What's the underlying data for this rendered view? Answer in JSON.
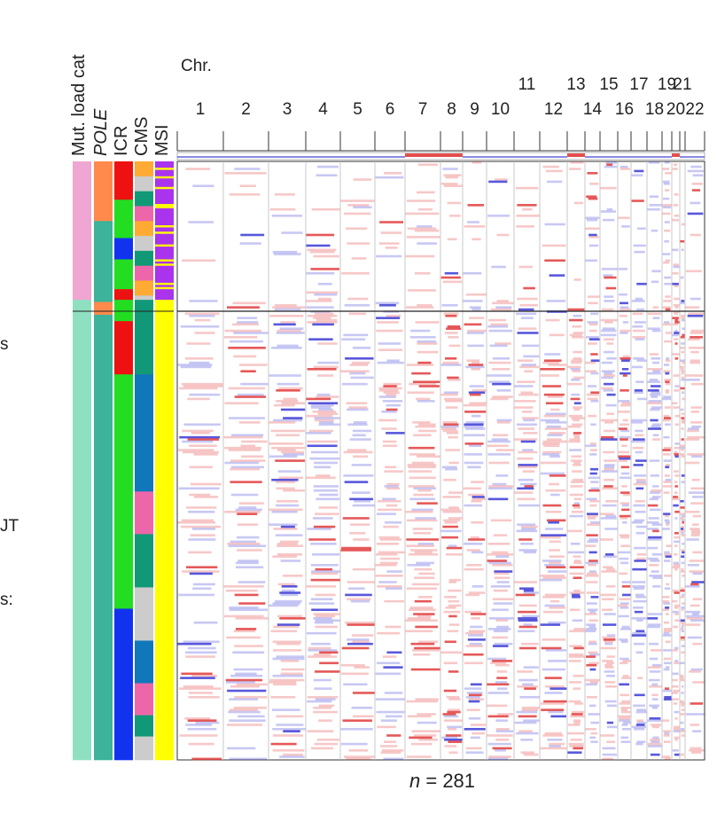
{
  "left_edge_fragments": [
    "s",
    "JT",
    "s:"
  ],
  "track_labels": [
    {
      "text": "Mut. load cat",
      "italic": false
    },
    {
      "text": "POLE",
      "italic": true
    },
    {
      "text": "ICR",
      "italic": false
    },
    {
      "text": "CMS",
      "italic": false
    },
    {
      "text": "MSI",
      "italic": false
    }
  ],
  "chr_title": "Chr.",
  "chromosomes": [
    "1",
    "2",
    "3",
    "4",
    "5",
    "6",
    "7",
    "8",
    "9",
    "10",
    "11",
    "12",
    "13",
    "14",
    "15",
    "16",
    "17",
    "18",
    "19",
    "20",
    "21",
    "22"
  ],
  "sample_label": {
    "prefix": "n",
    "suffix": " = 281"
  },
  "chart_data": {
    "type": "heatmap",
    "title": "",
    "xlabel": "Chr.",
    "x": [
      "1",
      "2",
      "3",
      "4",
      "5",
      "6",
      "7",
      "8",
      "9",
      "10",
      "11",
      "12",
      "13",
      "14",
      "15",
      "16",
      "17",
      "18",
      "19",
      "20",
      "21",
      "22"
    ],
    "n_samples": 281,
    "annotation_tracks": [
      "Mut. load cat",
      "POLE",
      "ICR",
      "CMS",
      "MSI"
    ],
    "colors": {
      "gain": "#e23b3b",
      "loss": "#3b3bd6",
      "mut_load_high": "#f0a6d2",
      "mut_load_low": "#8fe0c0",
      "pole_orange": "#ff8a4c",
      "pole_teal": "#3cb39a",
      "icr_red": "#ee1111",
      "icr_green": "#22dd22",
      "icr_blue": "#1133ee",
      "cms_orange": "#ffaa33",
      "cms_teal": "#119977",
      "cms_blue": "#1177bb",
      "cms_pink": "#ee66aa",
      "cms_grey": "#cccccc",
      "msi_purple": "#aa33ee",
      "msi_yellow": "#ffff00"
    },
    "legend": "none"
  }
}
